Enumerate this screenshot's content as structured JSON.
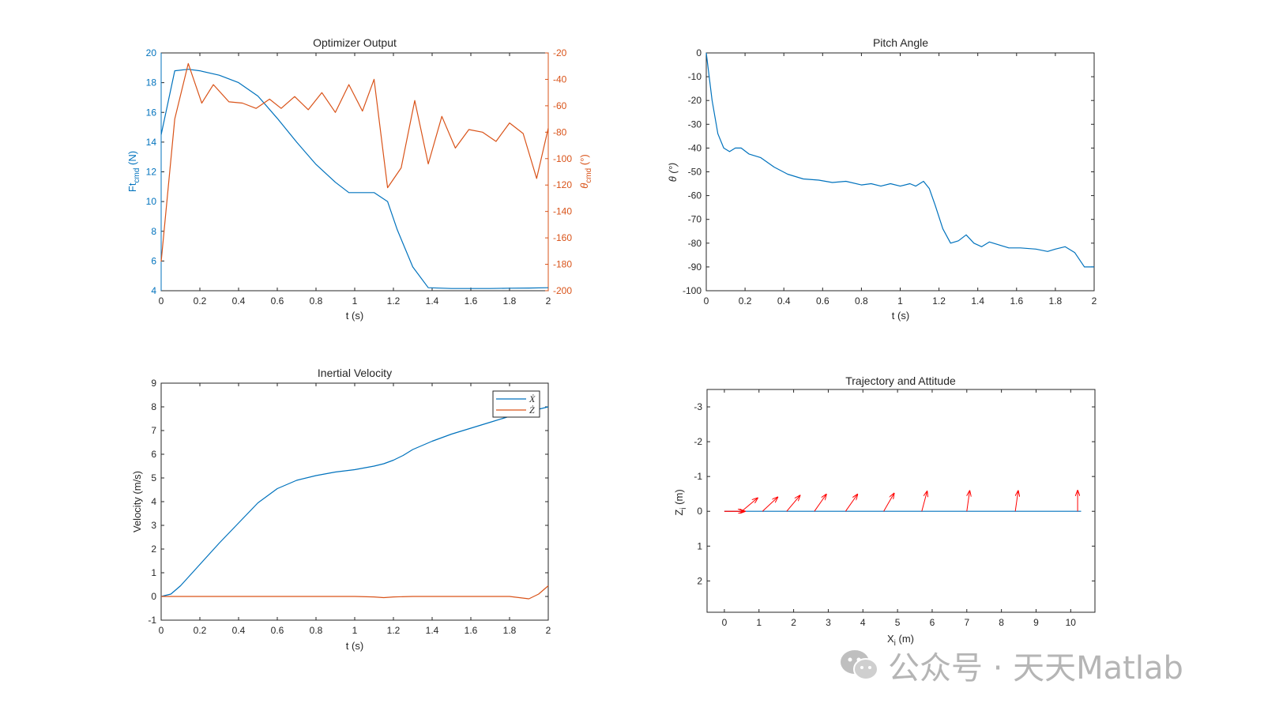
{
  "chart_data": [
    {
      "type": "line",
      "title": "Optimizer Output",
      "xlabel": "t (s)",
      "ylabel_left": "Ft_cmd (N)",
      "ylabel_right": "θ_cmd (°)",
      "xlim": [
        0,
        2
      ],
      "ylim_left": [
        4,
        20
      ],
      "ylim_right": [
        -200,
        -20
      ],
      "xticks": [
        "0",
        "0.2",
        "0.4",
        "0.6",
        "0.8",
        "1",
        "1.2",
        "1.4",
        "1.6",
        "1.8",
        "2"
      ],
      "yticks_left": [
        "4",
        "6",
        "8",
        "10",
        "12",
        "14",
        "16",
        "18",
        "20"
      ],
      "yticks_right": [
        "-200",
        "-180",
        "-160",
        "-140",
        "-120",
        "-100",
        "-80",
        "-60",
        "-40",
        "-20"
      ],
      "series": [
        {
          "name": "Ft_cmd",
          "axis": "left",
          "color": "#0072BD",
          "x": [
            0,
            0.07,
            0.14,
            0.2,
            0.3,
            0.4,
            0.5,
            0.6,
            0.7,
            0.8,
            0.9,
            0.97,
            1.05,
            1.1,
            1.17,
            1.22,
            1.3,
            1.38,
            1.5,
            1.6,
            1.7,
            1.8,
            1.9,
            2.0
          ],
          "y": [
            14.5,
            18.8,
            18.9,
            18.8,
            18.5,
            18.0,
            17.1,
            15.6,
            14.0,
            12.5,
            11.3,
            10.6,
            10.6,
            10.6,
            10.0,
            8.1,
            5.6,
            4.2,
            4.15,
            4.15,
            4.15,
            4.17,
            4.18,
            4.2
          ]
        },
        {
          "name": "θ_cmd",
          "axis": "right",
          "color": "#D95319",
          "x": [
            0,
            0.07,
            0.14,
            0.21,
            0.27,
            0.35,
            0.42,
            0.49,
            0.56,
            0.62,
            0.69,
            0.76,
            0.83,
            0.9,
            0.97,
            1.04,
            1.1,
            1.17,
            1.24,
            1.31,
            1.38,
            1.45,
            1.52,
            1.59,
            1.66,
            1.73,
            1.8,
            1.87,
            1.94,
            2.0
          ],
          "y": [
            -178,
            -70,
            -28,
            -58,
            -44,
            -57,
            -58,
            -62,
            -55,
            -62,
            -53,
            -63,
            -50,
            -65,
            -44,
            -64,
            -40,
            -122,
            -107,
            -56,
            -104,
            -68,
            -92,
            -78,
            -80,
            -87,
            -73,
            -81,
            -115,
            -77
          ]
        }
      ]
    },
    {
      "type": "line",
      "title": "Pitch Angle",
      "xlabel": "t (s)",
      "ylabel": "θ (°)",
      "xlim": [
        0,
        2
      ],
      "ylim": [
        -100,
        0
      ],
      "xticks": [
        "0",
        "0.2",
        "0.4",
        "0.6",
        "0.8",
        "1",
        "1.2",
        "1.4",
        "1.6",
        "1.8",
        "2"
      ],
      "yticks": [
        "-100",
        "-90",
        "-80",
        "-70",
        "-60",
        "-50",
        "-40",
        "-30",
        "-20",
        "-10",
        "0"
      ],
      "series": [
        {
          "name": "θ",
          "color": "#0072BD",
          "x": [
            0,
            0.03,
            0.06,
            0.09,
            0.12,
            0.15,
            0.18,
            0.22,
            0.28,
            0.35,
            0.42,
            0.5,
            0.58,
            0.65,
            0.72,
            0.8,
            0.85,
            0.9,
            0.95,
            1.0,
            1.05,
            1.08,
            1.12,
            1.15,
            1.18,
            1.22,
            1.26,
            1.3,
            1.34,
            1.38,
            1.42,
            1.46,
            1.5,
            1.56,
            1.62,
            1.7,
            1.76,
            1.8,
            1.85,
            1.9,
            1.95,
            2.0
          ],
          "y": [
            0,
            -20,
            -34,
            -40,
            -41.5,
            -40,
            -40,
            -42.5,
            -44,
            -48,
            -51,
            -53,
            -53.5,
            -54.5,
            -54,
            -55.5,
            -55,
            -56,
            -55,
            -56,
            -55,
            -56,
            -54,
            -57,
            -64,
            -74,
            -80,
            -79,
            -76.5,
            -80,
            -81.5,
            -79.5,
            -80.5,
            -82,
            -82,
            -82.5,
            -83.5,
            -82.5,
            -81.5,
            -84,
            -90,
            -90
          ]
        }
      ]
    },
    {
      "type": "line",
      "title": "Inertial Velocity",
      "xlabel": "t (s)",
      "ylabel": "Velocity (m/s)",
      "xlim": [
        0,
        2
      ],
      "ylim": [
        -1,
        9
      ],
      "xticks": [
        "0",
        "0.2",
        "0.4",
        "0.6",
        "0.8",
        "1",
        "1.2",
        "1.4",
        "1.6",
        "1.8",
        "2"
      ],
      "yticks": [
        "-1",
        "0",
        "1",
        "2",
        "3",
        "4",
        "5",
        "6",
        "7",
        "8",
        "9"
      ],
      "legend": {
        "position": "top-right",
        "entries": [
          "Ẋ",
          "Ż"
        ]
      },
      "series": [
        {
          "name": "Ẋ",
          "color": "#0072BD",
          "x": [
            0,
            0.05,
            0.1,
            0.2,
            0.3,
            0.4,
            0.5,
            0.6,
            0.7,
            0.8,
            0.9,
            1.0,
            1.1,
            1.15,
            1.2,
            1.25,
            1.3,
            1.4,
            1.5,
            1.6,
            1.7,
            1.8,
            1.9,
            2.0
          ],
          "y": [
            0,
            0.1,
            0.45,
            1.35,
            2.25,
            3.1,
            3.95,
            4.55,
            4.9,
            5.1,
            5.25,
            5.35,
            5.5,
            5.6,
            5.75,
            5.95,
            6.2,
            6.55,
            6.85,
            7.1,
            7.35,
            7.6,
            7.8,
            8.0
          ]
        },
        {
          "name": "Ż",
          "color": "#D95319",
          "x": [
            0,
            0.2,
            0.4,
            0.6,
            0.8,
            1.0,
            1.1,
            1.15,
            1.2,
            1.3,
            1.4,
            1.5,
            1.6,
            1.7,
            1.8,
            1.85,
            1.9,
            1.95,
            2.0
          ],
          "y": [
            0,
            0,
            0,
            0,
            0,
            0,
            -0.02,
            -0.05,
            -0.02,
            0,
            0,
            0,
            0,
            0,
            0,
            -0.05,
            -0.1,
            0.1,
            0.45
          ]
        }
      ]
    },
    {
      "type": "line",
      "title": "Trajectory and Attitude",
      "xlabel": "X_i (m)",
      "ylabel": "Z_i (m)",
      "xlim": [
        -0.5,
        10.7
      ],
      "ylim": [
        2.9,
        -3.5
      ],
      "xticks": [
        "0",
        "1",
        "2",
        "3",
        "4",
        "5",
        "6",
        "7",
        "8",
        "9",
        "10"
      ],
      "yticks": [
        "-3",
        "-2",
        "-1",
        "0",
        "1",
        "2"
      ],
      "series": [
        {
          "name": "trajectory",
          "color": "#0072BD",
          "x": [
            0,
            1,
            2,
            3,
            4,
            5,
            6,
            7,
            8,
            9,
            9.5,
            10.3
          ],
          "y": [
            0,
            0,
            0,
            0,
            0,
            0,
            0,
            0,
            0,
            0,
            0,
            0
          ]
        }
      ],
      "attitude_arrows": {
        "color": "#FF0000",
        "x": [
          0,
          0.5,
          1.1,
          1.8,
          2.6,
          3.5,
          4.6,
          5.7,
          7.0,
          8.4,
          10.2
        ],
        "pitch_deg": [
          0,
          -40,
          -43,
          -50,
          -55,
          -55,
          -60,
          -75,
          -82,
          -82,
          -90
        ]
      }
    }
  ],
  "watermark": {
    "text": "公众号 · 天天Matlab",
    "icon": "wechat-icon"
  }
}
